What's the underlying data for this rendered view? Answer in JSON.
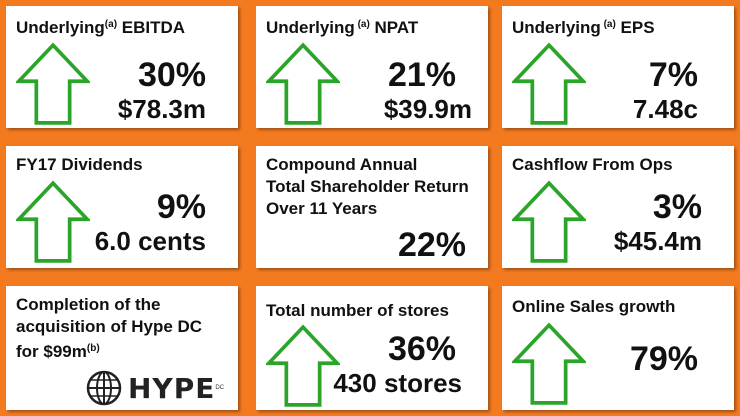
{
  "colors": {
    "background": "#f47a20",
    "arrow_fill": "#ffffff",
    "arrow_stroke": "#2aa52a"
  },
  "tiles": [
    {
      "title": "Underlying",
      "sup": "(a)",
      "title_rest": " EBITDA",
      "percent": "30%",
      "value": "$78.3m"
    },
    {
      "title": "Underlying",
      "sup": " (a)",
      "title_rest": " NPAT",
      "percent": "21%",
      "value": "$39.9m"
    },
    {
      "title": "Underlying",
      "sup": " (a)",
      "title_rest": " EPS",
      "percent": "7%",
      "value": "7.48c"
    },
    {
      "title": "FY17 Dividends",
      "percent": "9%",
      "value": "6.0 cents"
    },
    {
      "title_lines": [
        "Compound Annual",
        "Total Shareholder Return",
        "Over 11 Years"
      ],
      "percent": "22%"
    },
    {
      "title": "Cashflow From Ops",
      "percent": "3%",
      "value": "$45.4m"
    },
    {
      "title_lines": [
        "Completion of the",
        "acquisition of Hype DC",
        "for $99m"
      ],
      "sup": "(b)",
      "logo_text": "HYPE",
      "logo_tm": "DC"
    },
    {
      "title": "Total number of stores",
      "percent": "36%",
      "value": "430 stores"
    },
    {
      "title": "Online Sales growth",
      "percent": "79%"
    }
  ],
  "icons": {
    "arrow": "up-arrow-icon",
    "logo": "hype-globe-icon"
  }
}
